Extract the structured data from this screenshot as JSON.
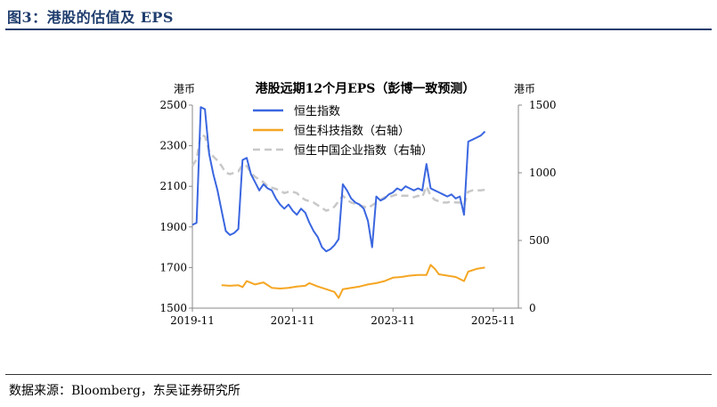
{
  "figure": {
    "title": "图3：港股的估值及 EPS",
    "source": "数据来源：Bloomberg，东吴证券研究所"
  },
  "colors": {
    "hsi": "#3a66e0",
    "hstech": "#f5a623",
    "hscei": "#c8c8c8",
    "accent": "#1f3d6e"
  },
  "chart_data": {
    "type": "line",
    "title": "港股远期12个月EPS（彭博一致预测）",
    "left_axis": {
      "unit": "港币",
      "range": [
        1500,
        2500
      ],
      "ticks": [
        "1500",
        "1700",
        "1900",
        "2100",
        "2300",
        "2500"
      ]
    },
    "right_axis": {
      "unit": "港币",
      "range": [
        0,
        1500
      ],
      "ticks": [
        "0",
        "500",
        "1000",
        "1500"
      ]
    },
    "x_axis": {
      "range": [
        "2019-11",
        "2026-05"
      ],
      "ticks": [
        "2019-11",
        "2021-11",
        "2023-11",
        "2025-11"
      ]
    },
    "legend_position": "top",
    "grid": false,
    "series": [
      {
        "name": "恒生指数",
        "axis": "left",
        "color": "#3a66e0",
        "style": "solid",
        "points": [
          [
            "2019-11",
            1910
          ],
          [
            "2019-12",
            1920
          ],
          [
            "2020-01",
            2490
          ],
          [
            "2020-02",
            2480
          ],
          [
            "2020-03",
            2260
          ],
          [
            "2020-04",
            2160
          ],
          [
            "2020-05",
            2080
          ],
          [
            "2020-06",
            1980
          ],
          [
            "2020-07",
            1880
          ],
          [
            "2020-08",
            1860
          ],
          [
            "2020-09",
            1870
          ],
          [
            "2020-10",
            1890
          ],
          [
            "2020-11",
            2230
          ],
          [
            "2020-12",
            2240
          ],
          [
            "2021-01",
            2160
          ],
          [
            "2021-02",
            2120
          ],
          [
            "2021-03",
            2080
          ],
          [
            "2021-04",
            2110
          ],
          [
            "2021-05",
            2090
          ],
          [
            "2021-06",
            2080
          ],
          [
            "2021-07",
            2040
          ],
          [
            "2021-08",
            2010
          ],
          [
            "2021-09",
            1990
          ],
          [
            "2021-10",
            2010
          ],
          [
            "2021-11",
            1980
          ],
          [
            "2021-12",
            1960
          ],
          [
            "2022-01",
            1990
          ],
          [
            "2022-02",
            1970
          ],
          [
            "2022-03",
            1920
          ],
          [
            "2022-04",
            1880
          ],
          [
            "2022-05",
            1850
          ],
          [
            "2022-06",
            1800
          ],
          [
            "2022-07",
            1780
          ],
          [
            "2022-08",
            1790
          ],
          [
            "2022-09",
            1810
          ],
          [
            "2022-10",
            1840
          ],
          [
            "2022-11",
            2110
          ],
          [
            "2022-12",
            2080
          ],
          [
            "2023-01",
            2040
          ],
          [
            "2023-02",
            2020
          ],
          [
            "2023-03",
            2010
          ],
          [
            "2023-04",
            1990
          ],
          [
            "2023-05",
            1930
          ],
          [
            "2023-06",
            1800
          ],
          [
            "2023-07",
            2050
          ],
          [
            "2023-08",
            2030
          ],
          [
            "2023-09",
            2040
          ],
          [
            "2023-10",
            2060
          ],
          [
            "2023-11",
            2070
          ],
          [
            "2023-12",
            2090
          ],
          [
            "2024-01",
            2080
          ],
          [
            "2024-02",
            2100
          ],
          [
            "2024-03",
            2090
          ],
          [
            "2024-04",
            2080
          ],
          [
            "2024-05",
            2090
          ],
          [
            "2024-06",
            2080
          ],
          [
            "2024-07",
            2210
          ],
          [
            "2024-08",
            2090
          ],
          [
            "2024-09",
            2080
          ],
          [
            "2024-10",
            2070
          ],
          [
            "2024-11",
            2060
          ],
          [
            "2024-12",
            2050
          ],
          [
            "2025-01",
            2060
          ],
          [
            "2025-02",
            2040
          ],
          [
            "2025-03",
            2050
          ],
          [
            "2025-04",
            1960
          ],
          [
            "2025-05",
            2320
          ],
          [
            "2025-06",
            2330
          ],
          [
            "2025-07",
            2340
          ],
          [
            "2025-08",
            2350
          ],
          [
            "2025-09",
            2370
          ]
        ]
      },
      {
        "name": "恒生科技指数（右轴）",
        "axis": "right",
        "color": "#f5a623",
        "style": "solid",
        "points": [
          [
            "2020-06",
            170
          ],
          [
            "2020-08",
            165
          ],
          [
            "2020-10",
            170
          ],
          [
            "2020-11",
            155
          ],
          [
            "2020-12",
            200
          ],
          [
            "2021-02",
            175
          ],
          [
            "2021-04",
            190
          ],
          [
            "2021-06",
            150
          ],
          [
            "2021-08",
            145
          ],
          [
            "2021-10",
            150
          ],
          [
            "2021-12",
            160
          ],
          [
            "2022-02",
            165
          ],
          [
            "2022-03",
            185
          ],
          [
            "2022-05",
            160
          ],
          [
            "2022-07",
            140
          ],
          [
            "2022-09",
            120
          ],
          [
            "2022-10",
            75
          ],
          [
            "2022-11",
            140
          ],
          [
            "2023-01",
            150
          ],
          [
            "2023-03",
            160
          ],
          [
            "2023-05",
            175
          ],
          [
            "2023-07",
            185
          ],
          [
            "2023-09",
            200
          ],
          [
            "2023-11",
            225
          ],
          [
            "2024-01",
            230
          ],
          [
            "2024-03",
            240
          ],
          [
            "2024-05",
            245
          ],
          [
            "2024-07",
            245
          ],
          [
            "2024-08",
            320
          ],
          [
            "2024-09",
            290
          ],
          [
            "2024-10",
            250
          ],
          [
            "2024-12",
            240
          ],
          [
            "2025-02",
            230
          ],
          [
            "2025-04",
            200
          ],
          [
            "2025-05",
            270
          ],
          [
            "2025-07",
            290
          ],
          [
            "2025-09",
            300
          ]
        ]
      },
      {
        "name": "恒生中国企业指数（右轴）",
        "axis": "right",
        "color": "#c8c8c8",
        "style": "dashed",
        "points": [
          [
            "2019-11",
            1050
          ],
          [
            "2019-12",
            1100
          ],
          [
            "2020-01",
            1280
          ],
          [
            "2020-02",
            1270
          ],
          [
            "2020-03",
            1160
          ],
          [
            "2020-04",
            1120
          ],
          [
            "2020-05",
            1090
          ],
          [
            "2020-06",
            1050
          ],
          [
            "2020-07",
            1000
          ],
          [
            "2020-08",
            990
          ],
          [
            "2020-09",
            1000
          ],
          [
            "2020-10",
            1010
          ],
          [
            "2020-11",
            1060
          ],
          [
            "2020-12",
            1050
          ],
          [
            "2021-01",
            1000
          ],
          [
            "2021-02",
            970
          ],
          [
            "2021-03",
            950
          ],
          [
            "2021-04",
            930
          ],
          [
            "2021-05",
            900
          ],
          [
            "2021-06",
            890
          ],
          [
            "2021-07",
            880
          ],
          [
            "2021-08",
            870
          ],
          [
            "2021-09",
            850
          ],
          [
            "2021-10",
            860
          ],
          [
            "2021-11",
            860
          ],
          [
            "2021-12",
            850
          ],
          [
            "2022-01",
            820
          ],
          [
            "2022-02",
            800
          ],
          [
            "2022-03",
            790
          ],
          [
            "2022-04",
            780
          ],
          [
            "2022-05",
            760
          ],
          [
            "2022-06",
            740
          ],
          [
            "2022-07",
            720
          ],
          [
            "2022-08",
            730
          ],
          [
            "2022-09",
            750
          ],
          [
            "2022-10",
            790
          ],
          [
            "2022-11",
            830
          ],
          [
            "2022-12",
            800
          ],
          [
            "2023-01",
            780
          ],
          [
            "2023-02",
            770
          ],
          [
            "2023-03",
            760
          ],
          [
            "2023-04",
            750
          ],
          [
            "2023-05",
            740
          ],
          [
            "2023-06",
            760
          ],
          [
            "2023-07",
            780
          ],
          [
            "2023-08",
            800
          ],
          [
            "2023-09",
            820
          ],
          [
            "2023-10",
            820
          ],
          [
            "2023-11",
            830
          ],
          [
            "2023-12",
            840
          ],
          [
            "2024-01",
            830
          ],
          [
            "2024-02",
            830
          ],
          [
            "2024-03",
            830
          ],
          [
            "2024-04",
            820
          ],
          [
            "2024-05",
            830
          ],
          [
            "2024-06",
            820
          ],
          [
            "2024-07",
            900
          ],
          [
            "2024-08",
            830
          ],
          [
            "2024-09",
            800
          ],
          [
            "2024-10",
            790
          ],
          [
            "2024-11",
            780
          ],
          [
            "2024-12",
            780
          ],
          [
            "2025-01",
            790
          ],
          [
            "2025-02",
            780
          ],
          [
            "2025-03",
            780
          ],
          [
            "2025-04",
            760
          ],
          [
            "2025-05",
            860
          ],
          [
            "2025-06",
            870
          ],
          [
            "2025-07",
            870
          ],
          [
            "2025-08",
            870
          ],
          [
            "2025-09",
            875
          ]
        ]
      }
    ]
  }
}
